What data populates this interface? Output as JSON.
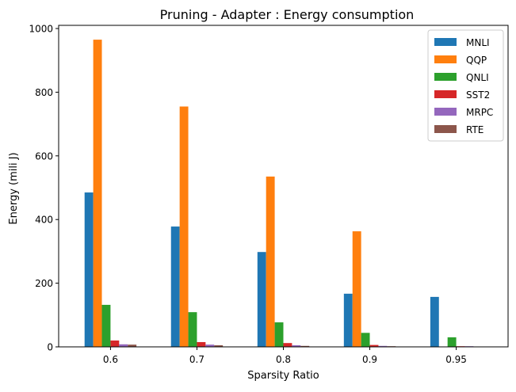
{
  "chart_data": {
    "type": "bar",
    "title": "Pruning - Adapter : Energy consumption",
    "xlabel": "Sparsity Ratio",
    "ylabel": "Energy (mili J)",
    "categories": [
      "0.6",
      "0.7",
      "0.8",
      "0.9",
      "0.95"
    ],
    "ylim": [
      0,
      1010
    ],
    "yticks": [
      0,
      200,
      400,
      600,
      800,
      1000
    ],
    "legend_position": "top-right",
    "grid": false,
    "series": [
      {
        "name": "MNLI",
        "color": "#1f77b4",
        "values": [
          485,
          378,
          298,
          167,
          157
        ]
      },
      {
        "name": "QQP",
        "color": "#ff7f0e",
        "values": [
          965,
          755,
          535,
          363,
          0
        ]
      },
      {
        "name": "QNLI",
        "color": "#2ca02c",
        "values": [
          132,
          109,
          77,
          44,
          30
        ]
      },
      {
        "name": "SST2",
        "color": "#d62728",
        "values": [
          20,
          15,
          12,
          6,
          2
        ]
      },
      {
        "name": "MRPC",
        "color": "#9467bd",
        "values": [
          8,
          7,
          5,
          3,
          2
        ]
      },
      {
        "name": "RTE",
        "color": "#8c564b",
        "values": [
          7,
          5,
          3,
          2,
          1
        ]
      }
    ]
  }
}
